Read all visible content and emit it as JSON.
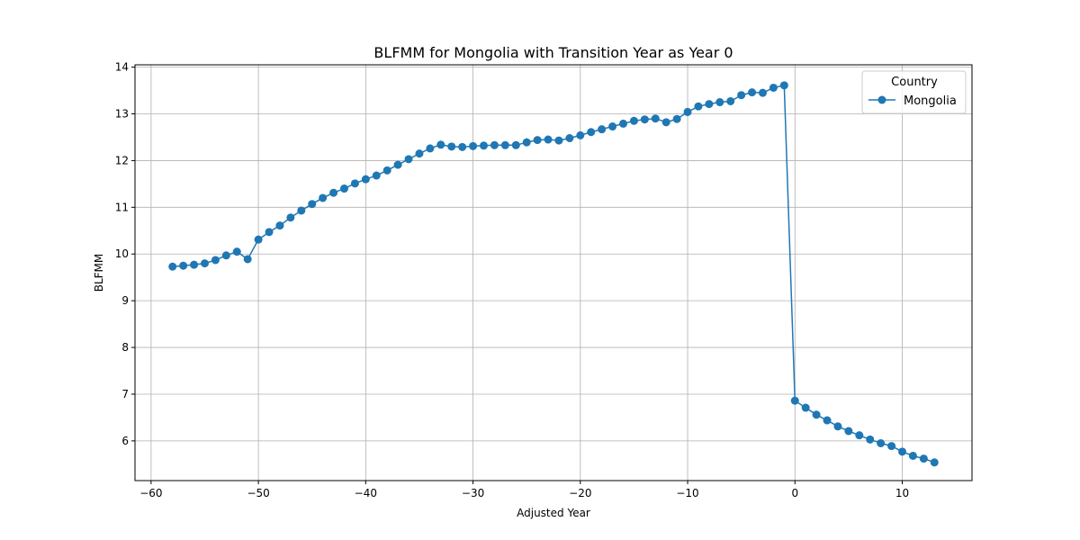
{
  "chart_data": {
    "type": "line",
    "title": "BLFMM for Mongolia with Transition Year as Year 0",
    "xlabel": "Adjusted Year",
    "ylabel": "BLFMM",
    "xlim": [
      -61.5,
      16.5
    ],
    "ylim": [
      5.15,
      14.05
    ],
    "xticks": [
      -60,
      -50,
      -40,
      -30,
      -20,
      -10,
      0,
      10
    ],
    "xtick_labels": [
      "−60",
      "−50",
      "−40",
      "−30",
      "−20",
      "−10",
      "0",
      "10"
    ],
    "yticks": [
      6,
      7,
      8,
      9,
      10,
      11,
      12,
      13,
      14
    ],
    "ytick_labels": [
      "6",
      "7",
      "8",
      "9",
      "10",
      "11",
      "12",
      "13",
      "14"
    ],
    "grid": true,
    "legend": {
      "title": "Country",
      "placement": "top-right"
    },
    "series": [
      {
        "name": "Mongolia",
        "color": "#1f77b4",
        "marker": "circle",
        "x": [
          -58,
          -57,
          -56,
          -55,
          -54,
          -53,
          -52,
          -51,
          -50,
          -49,
          -48,
          -47,
          -46,
          -45,
          -44,
          -43,
          -42,
          -41,
          -40,
          -39,
          -38,
          -37,
          -36,
          -35,
          -34,
          -33,
          -32,
          -31,
          -30,
          -29,
          -28,
          -27,
          -26,
          -25,
          -24,
          -23,
          -22,
          -21,
          -20,
          -19,
          -18,
          -17,
          -16,
          -15,
          -14,
          -13,
          -12,
          -11,
          -10,
          -9,
          -8,
          -7,
          -6,
          -5,
          -4,
          -3,
          -2,
          -1,
          0,
          1,
          2,
          3,
          4,
          5,
          6,
          7,
          8,
          9,
          10,
          11,
          12,
          13
        ],
        "y": [
          9.73,
          9.75,
          9.77,
          9.8,
          9.87,
          9.97,
          10.05,
          9.89,
          10.31,
          10.47,
          10.61,
          10.78,
          10.93,
          11.07,
          11.2,
          11.31,
          11.4,
          11.51,
          11.6,
          11.68,
          11.79,
          11.91,
          12.03,
          12.15,
          12.26,
          12.34,
          12.3,
          12.29,
          12.31,
          12.32,
          12.33,
          12.33,
          12.33,
          12.39,
          12.44,
          12.45,
          12.43,
          12.48,
          12.54,
          12.61,
          12.67,
          12.73,
          12.79,
          12.85,
          12.88,
          12.9,
          12.82,
          12.89,
          13.04,
          13.16,
          13.21,
          13.25,
          13.27,
          13.4,
          13.46,
          13.45,
          13.56,
          13.61,
          6.86,
          6.71,
          6.56,
          6.44,
          6.31,
          6.21,
          6.12,
          6.03,
          5.95,
          5.89,
          5.77,
          5.68,
          5.62,
          5.54
        ]
      }
    ]
  }
}
